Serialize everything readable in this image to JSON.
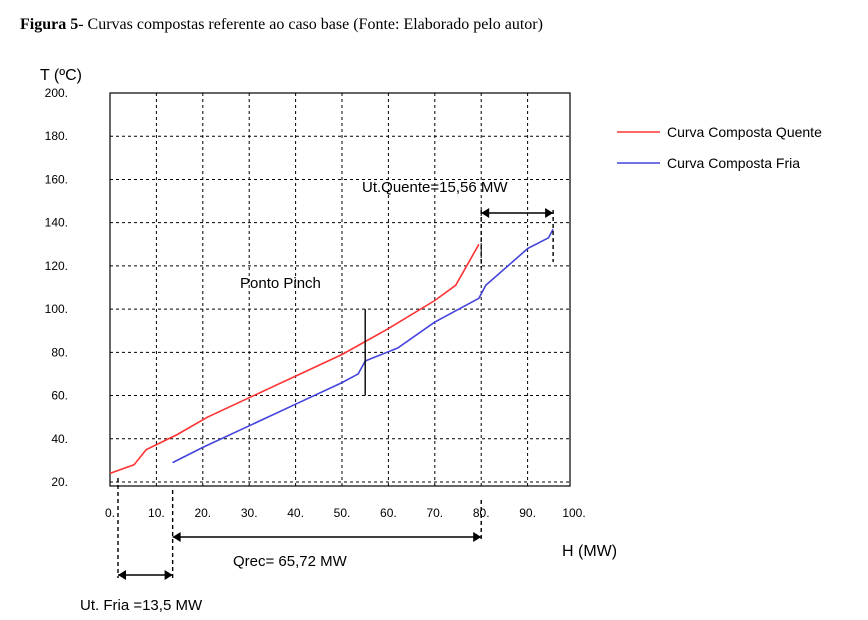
{
  "caption": {
    "label": "Figura 5",
    "text": "- Curvas compostas referente ao caso base (Fonte: Elaborado pelo autor)"
  },
  "chart_data": {
    "type": "line",
    "xlabel": "H (MW)",
    "ylabel": "T (ºC)",
    "xlim": [
      0,
      100
    ],
    "ylim": [
      20,
      200
    ],
    "xticks": [
      0,
      10,
      20,
      30,
      40,
      50,
      60,
      70,
      80,
      90,
      100
    ],
    "xtick_labels": [
      "0.",
      "10.",
      "20.",
      "30.",
      "40.",
      "50.",
      "60.",
      "70.",
      "80.",
      "90.",
      "100."
    ],
    "yticks": [
      20,
      40,
      60,
      80,
      100,
      120,
      140,
      160,
      180,
      200
    ],
    "ytick_labels": [
      "20.",
      "40.",
      "60.",
      "80.",
      "100.",
      "120.",
      "140.",
      "160.",
      "180.",
      "200."
    ],
    "grid": true,
    "legend_position": "top-right",
    "series": [
      {
        "name": "Curva Composta Quente",
        "color": "#ff3333",
        "x": [
          0,
          5.2,
          7.8,
          14.5,
          21,
          30,
          40,
          50,
          60,
          70,
          74.5,
          79.5
        ],
        "y": [
          24,
          28,
          35,
          42,
          50,
          59,
          69,
          79,
          91,
          104,
          111,
          130
        ]
      },
      {
        "name": "Curva Composta Fria",
        "color": "#4444dd",
        "x": [
          13.5,
          20,
          30,
          40,
          50,
          53.5,
          55,
          62,
          70,
          79.5,
          81,
          90,
          94.5,
          95.5
        ],
        "y": [
          29,
          36,
          46,
          56,
          66,
          70,
          76,
          82,
          94,
          105,
          111,
          128,
          133,
          137
        ]
      }
    ],
    "annotations": {
      "pinch": {
        "label": "Ponto Pinch",
        "x": 55,
        "y_range": [
          60,
          100
        ]
      },
      "hot_utility": {
        "label": "Ut.Quente=15,56 MW",
        "x_from": 80,
        "x_to": 95.5
      },
      "recovery": {
        "label": "Qrec= 65,72 MW",
        "x_from": 13.5,
        "x_to": 80
      },
      "cold_utility": {
        "label": "Ut. Fria =13,5 MW",
        "x_from": 0,
        "x_to": 13.5
      }
    }
  }
}
